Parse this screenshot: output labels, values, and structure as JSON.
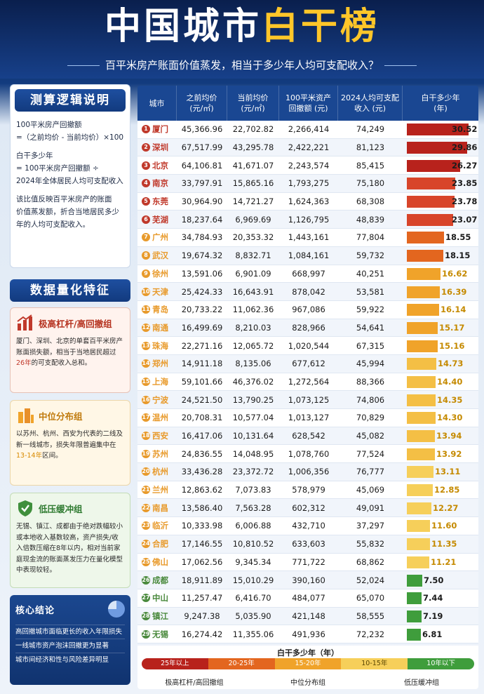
{
  "header": {
    "title_part1": "中国城市",
    "title_part2": "白干榜",
    "subtitle": "百平米房产账面价值蒸发，相当于多少年人均可支配收入？"
  },
  "logic": {
    "title": "测算逻辑说明",
    "lines": [
      "100平米房产回撤额",
      "=（之前均价 - 当前均价）×100",
      "白干多少年",
      "= 100平米房产回撤额 ÷",
      "2024年全体居民人均可支配收入",
      "该比值反映百平米房产的账面",
      "价值蒸发额，折合当地居民多少",
      "年的人均可支配收入。"
    ]
  },
  "quant": {
    "title": "数据量化特征",
    "groups": [
      {
        "title": "极高杠杆/高回撤组",
        "text_a": "厦门、深圳、北京的单套百平米房产账面损失额，相当于当地居民超过",
        "hl": "26年",
        "text_b": "的可支配收入总和。"
      },
      {
        "title": "中位分布组",
        "text_a": "以苏州、杭州、西安为代表的二线及新一线城市，损失年限普遍集中在",
        "hl": "13-14年",
        "text_b": "区间。"
      },
      {
        "title": "低压缓冲组",
        "text_a": "无锡、镇江、成都由于绝对跌幅较小或本地收入基数较高，资产损失/收入倍数压缩在8年以内，相对当前家庭现金流的账面蒸发压力在量化模型中表现较轻。",
        "hl": "",
        "text_b": ""
      }
    ]
  },
  "conclusion": {
    "title": "核心结论",
    "items": [
      "高回撤城市面临更长的收入年限损失",
      "一线城市资产泡沫回撤更为显著",
      "城市间经济和性与风险差异明显"
    ]
  },
  "table": {
    "headers": [
      "城市",
      "之前均价\n(元/㎡)",
      "当前均价\n(元/㎡)",
      "100平米资产\n回撤额 (元)",
      "2024人均可支配\n收入 (元)",
      "白干多少年\n(年)"
    ]
  },
  "chart_data": {
    "type": "table",
    "title": "中国城市白干榜",
    "rows": [
      {
        "rank": "1",
        "city": "厦门",
        "before": "45,366.96",
        "now": "22,702.82",
        "loss": "2,266,414",
        "income": "74,249",
        "years": 30.52
      },
      {
        "rank": "2",
        "city": "深圳",
        "before": "67,517.99",
        "now": "43,295.78",
        "loss": "2,422,221",
        "income": "81,123",
        "years": 29.86
      },
      {
        "rank": "3",
        "city": "北京",
        "before": "64,106.81",
        "now": "41,671.07",
        "loss": "2,243,574",
        "income": "85,415",
        "years": 26.27
      },
      {
        "rank": "4",
        "city": "南京",
        "before": "33,797.91",
        "now": "15,865.16",
        "loss": "1,793,275",
        "income": "75,180",
        "years": 23.85
      },
      {
        "rank": "5",
        "city": "东莞",
        "before": "30,964.90",
        "now": "14,721.27",
        "loss": "1,624,363",
        "income": "68,308",
        "years": 23.78
      },
      {
        "rank": "6",
        "city": "芜湖",
        "before": "18,237.64",
        "now": "6,969.69",
        "loss": "1,126,795",
        "income": "48,839",
        "years": 23.07
      },
      {
        "rank": "7",
        "city": "广州",
        "before": "34,784.93",
        "now": "20,353.32",
        "loss": "1,443,161",
        "income": "77,804",
        "years": 18.55
      },
      {
        "rank": "8",
        "city": "武汉",
        "before": "19,674.32",
        "now": "8,832.71",
        "loss": "1,084,161",
        "income": "59,732",
        "years": 18.15
      },
      {
        "rank": "9",
        "city": "徐州",
        "before": "13,591.06",
        "now": "6,901.09",
        "loss": "668,997",
        "income": "40,251",
        "years": 16.62
      },
      {
        "rank": "10",
        "city": "天津",
        "before": "25,424.33",
        "now": "16,643.91",
        "loss": "878,042",
        "income": "53,581",
        "years": 16.39
      },
      {
        "rank": "11",
        "city": "青岛",
        "before": "20,733.22",
        "now": "11,062.36",
        "loss": "967,086",
        "income": "59,922",
        "years": 16.14
      },
      {
        "rank": "12",
        "city": "南通",
        "before": "16,499.69",
        "now": "8,210.03",
        "loss": "828,966",
        "income": "54,641",
        "years": 15.17
      },
      {
        "rank": "13",
        "city": "珠海",
        "before": "22,271.16",
        "now": "12,065.72",
        "loss": "1,020,544",
        "income": "67,315",
        "years": 15.16
      },
      {
        "rank": "14",
        "city": "郑州",
        "before": "14,911.18",
        "now": "8,135.06",
        "loss": "677,612",
        "income": "45,994",
        "years": 14.73
      },
      {
        "rank": "15",
        "city": "上海",
        "before": "59,101.66",
        "now": "46,376.02",
        "loss": "1,272,564",
        "income": "88,366",
        "years": 14.4
      },
      {
        "rank": "16",
        "city": "宁波",
        "before": "24,521.50",
        "now": "13,790.25",
        "loss": "1,073,125",
        "income": "74,806",
        "years": 14.35
      },
      {
        "rank": "17",
        "city": "温州",
        "before": "20,708.31",
        "now": "10,577.04",
        "loss": "1,013,127",
        "income": "70,829",
        "years": 14.3
      },
      {
        "rank": "18",
        "city": "西安",
        "before": "16,417.06",
        "now": "10,131.64",
        "loss": "628,542",
        "income": "45,082",
        "years": 13.94
      },
      {
        "rank": "19",
        "city": "苏州",
        "before": "24,836.55",
        "now": "14,048.95",
        "loss": "1,078,760",
        "income": "77,524",
        "years": 13.92
      },
      {
        "rank": "20",
        "city": "杭州",
        "before": "33,436.28",
        "now": "23,372.72",
        "loss": "1,006,356",
        "income": "76,777",
        "years": 13.11
      },
      {
        "rank": "21",
        "city": "兰州",
        "before": "12,863.62",
        "now": "7,073.83",
        "loss": "578,979",
        "income": "45,069",
        "years": 12.85
      },
      {
        "rank": "22",
        "city": "南昌",
        "before": "13,586.40",
        "now": "7,563.28",
        "loss": "602,312",
        "income": "49,091",
        "years": 12.27
      },
      {
        "rank": "23",
        "city": "临沂",
        "before": "10,333.98",
        "now": "6,006.88",
        "loss": "432,710",
        "income": "37,297",
        "years": 11.6
      },
      {
        "rank": "24",
        "city": "合肥",
        "before": "17,146.55",
        "now": "10,810.52",
        "loss": "633,603",
        "income": "55,832",
        "years": 11.35
      },
      {
        "rank": "25",
        "city": "佛山",
        "before": "17,062.56",
        "now": "9,345.34",
        "loss": "771,722",
        "income": "68,862",
        "years": 11.21
      },
      {
        "rank": "26",
        "city": "成都",
        "before": "18,911.89",
        "now": "15,010.29",
        "loss": "390,160",
        "income": "52,024",
        "years": 7.5
      },
      {
        "rank": "27",
        "city": "中山",
        "before": "11,257.47",
        "now": "6,416.70",
        "loss": "484,077",
        "income": "65,070",
        "years": 7.44
      },
      {
        "rank": "28",
        "city": "镇江",
        "before": "9,247.38",
        "now": "5,035.90",
        "loss": "421,148",
        "income": "58,555",
        "years": 7.19
      },
      {
        "rank": "29",
        "city": "无锡",
        "before": "16,274.42",
        "now": "11,355.06",
        "loss": "491,936",
        "income": "72,232",
        "years": 6.81
      }
    ],
    "bar_max": 32
  },
  "legend": {
    "title": "白干多少年（年）",
    "segments": [
      "25年以上",
      "20-25年",
      "15-20年",
      "10-15年",
      "10年以下"
    ],
    "segment_colors": [
      "#b8221c",
      "#e3661f",
      "#f0a32a",
      "#f6cf5a",
      "#3f9d3c"
    ],
    "groups": [
      "极高杠杆/高回撤组",
      "中位分布组",
      "低压缓冲组"
    ]
  },
  "colors": {
    "rank_top": "#c0392b",
    "rank_mid": "#e89a2b",
    "rank_low": "#4b8a3e"
  }
}
